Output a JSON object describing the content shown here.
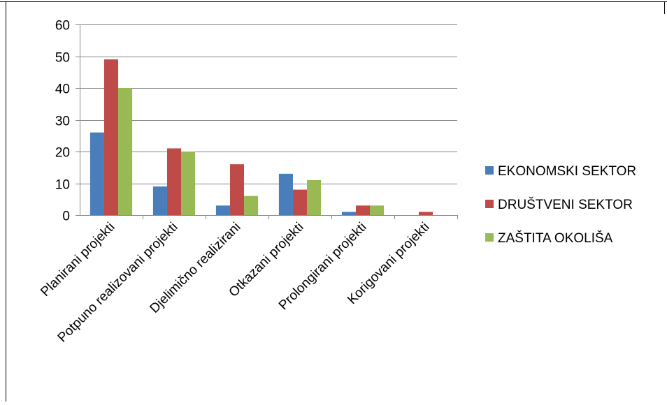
{
  "chart_data": {
    "type": "bar",
    "title": "",
    "xlabel": "",
    "ylabel": "",
    "categories": [
      "Planirani projekti",
      "Potpuno realizovani projekti",
      "Djelimično realizirani",
      "Otkazani projekti",
      "Prolongirani projekti",
      "Korigovani projekti"
    ],
    "series": [
      {
        "name": "EKONOMSKI SEKTOR",
        "color": "#4a7ebb",
        "values": [
          26,
          9,
          3,
          13,
          1,
          0
        ]
      },
      {
        "name": "DRUŠTVENI SEKTOR",
        "color": "#be4b48",
        "values": [
          49,
          21,
          16,
          8,
          3,
          1
        ]
      },
      {
        "name": "ZAŠTITA OKOLIŠA",
        "color": "#98b954",
        "values": [
          40,
          20,
          6,
          11,
          3,
          0
        ]
      }
    ],
    "ylim": [
      0,
      60
    ],
    "yticks": [
      "0",
      "10",
      "20",
      "30",
      "40",
      "50",
      "60"
    ],
    "grid": true,
    "legend_position": "right"
  }
}
